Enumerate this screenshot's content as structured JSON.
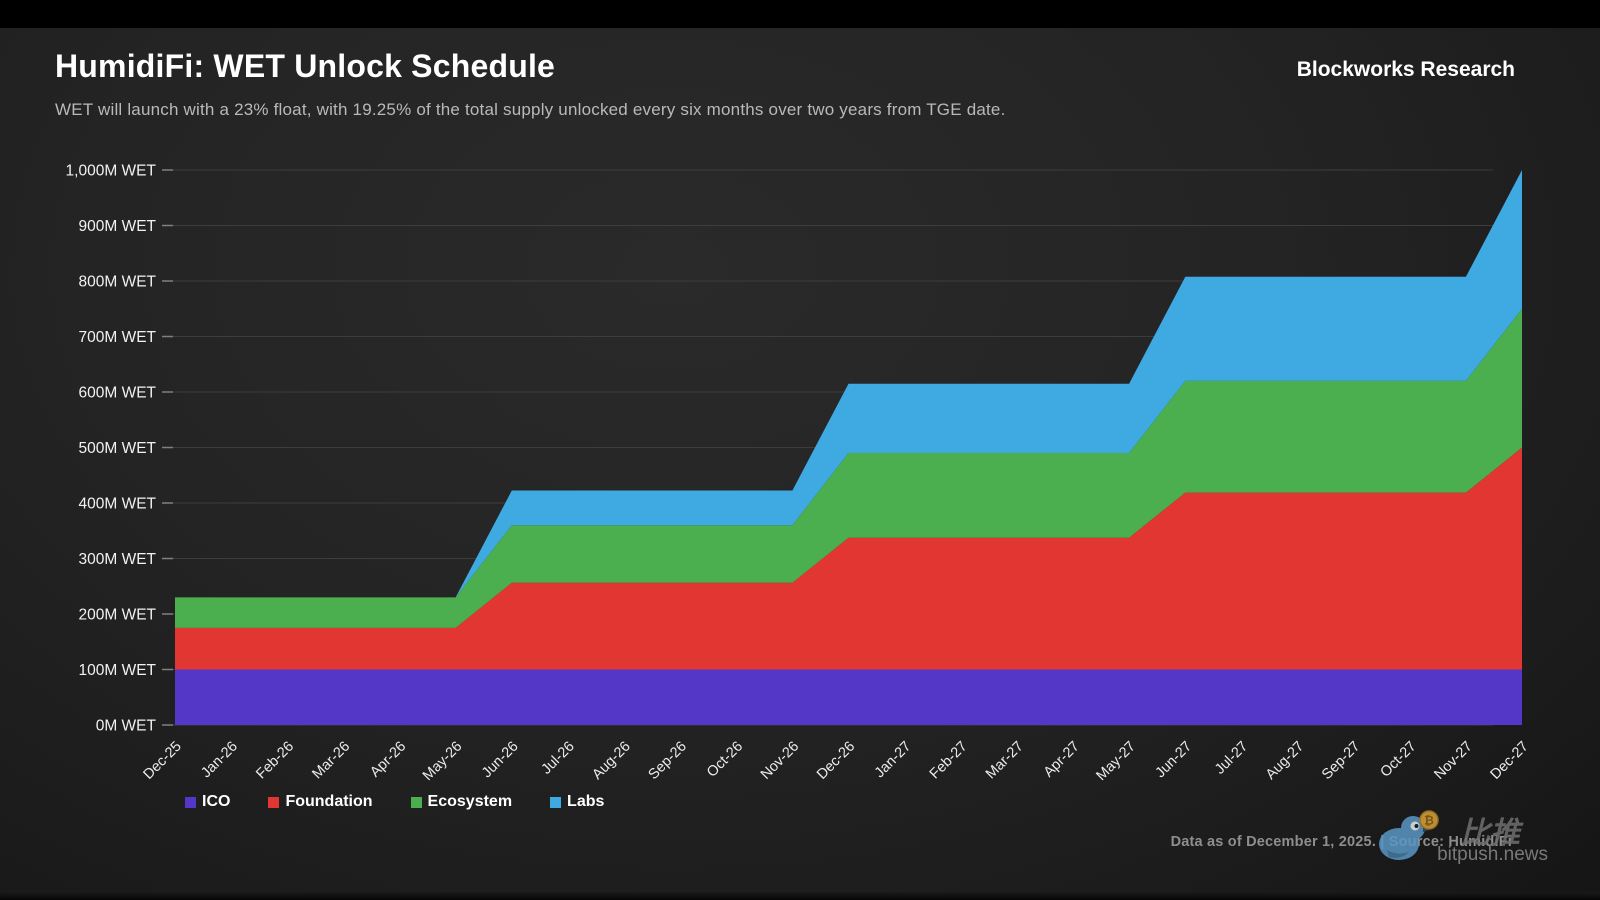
{
  "header": {
    "title": "HumidiFi: WET Unlock Schedule",
    "subtitle": "WET will launch with a 23% float, with 19.25% of the total supply unlocked every six months over two years from TGE date.",
    "brand": "Blockworks Research"
  },
  "footer": {
    "note": "Data as of December 1, 2025. | Source: HumidiFi",
    "watermark_cn": "比推",
    "watermark_site": "bitpush.news"
  },
  "chart_data": {
    "type": "area",
    "stacked": true,
    "title": "HumidiFi: WET Unlock Schedule",
    "x": [
      "Dec-25",
      "Jan-26",
      "Feb-26",
      "Mar-26",
      "Apr-26",
      "May-26",
      "Jun-26",
      "Jul-26",
      "Aug-26",
      "Sep-26",
      "Oct-26",
      "Nov-26",
      "Dec-26",
      "Jan-27",
      "Feb-27",
      "Mar-27",
      "Apr-27",
      "May-27",
      "Jun-27",
      "Jul-27",
      "Aug-27",
      "Sep-27",
      "Oct-27",
      "Nov-27",
      "Dec-27"
    ],
    "series": [
      {
        "name": "ICO",
        "color": "#5537c8",
        "values": [
          100,
          100,
          100,
          100,
          100,
          100,
          100,
          100,
          100,
          100,
          100,
          100,
          100,
          100,
          100,
          100,
          100,
          100,
          100,
          100,
          100,
          100,
          100,
          100,
          100
        ]
      },
      {
        "name": "Foundation",
        "color": "#e23633",
        "values": [
          75,
          75,
          75,
          75,
          75,
          75,
          156.25,
          156.25,
          156.25,
          156.25,
          156.25,
          156.25,
          237.5,
          237.5,
          237.5,
          237.5,
          237.5,
          237.5,
          318.75,
          318.75,
          318.75,
          318.75,
          318.75,
          318.75,
          400
        ]
      },
      {
        "name": "Ecosystem",
        "color": "#4bae4f",
        "values": [
          55,
          55,
          55,
          55,
          55,
          55,
          103.75,
          103.75,
          103.75,
          103.75,
          103.75,
          103.75,
          152.5,
          152.5,
          152.5,
          152.5,
          152.5,
          152.5,
          201.25,
          201.25,
          201.25,
          201.25,
          201.25,
          201.25,
          250
        ]
      },
      {
        "name": "Labs",
        "color": "#3fa9e1",
        "values": [
          0,
          0,
          0,
          0,
          0,
          0,
          62.5,
          62.5,
          62.5,
          62.5,
          62.5,
          62.5,
          125,
          125,
          125,
          125,
          125,
          125,
          187.5,
          187.5,
          187.5,
          187.5,
          187.5,
          187.5,
          250
        ]
      }
    ],
    "y_ticks": [
      "0M WET",
      "100M WET",
      "200M WET",
      "300M WET",
      "400M WET",
      "500M WET",
      "600M WET",
      "700M WET",
      "800M WET",
      "900M WET",
      "1,000M WET"
    ],
    "ylim": [
      0,
      1000
    ],
    "grid": true,
    "legend_position": "bottom-left",
    "totals_by_phase": {
      "TGE_float": 230,
      "after_unlock_1": 422.5,
      "after_unlock_2": 615,
      "after_unlock_3": 807.5,
      "final": 1000
    }
  }
}
